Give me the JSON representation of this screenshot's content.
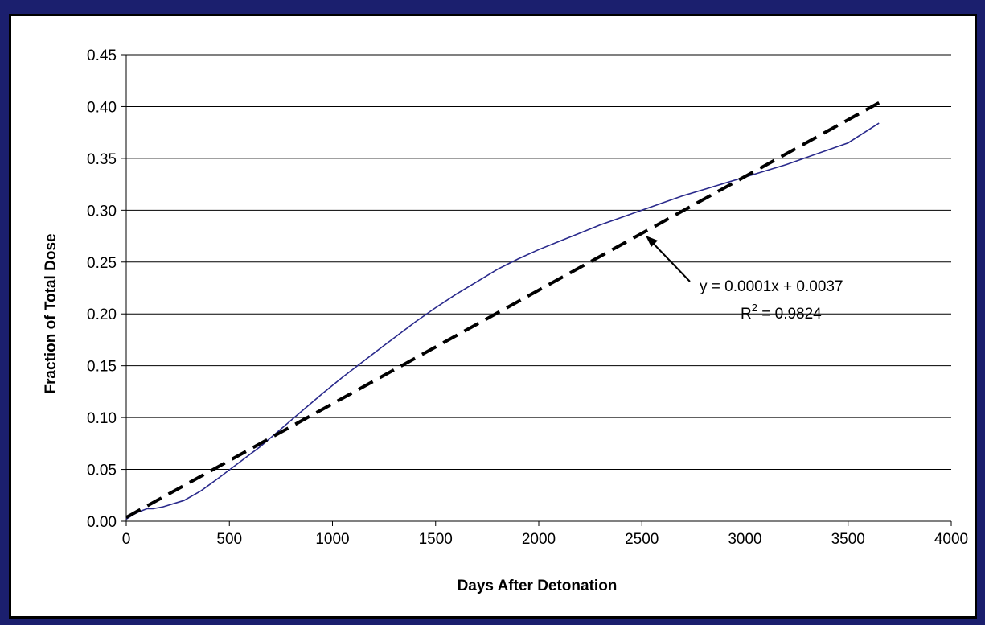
{
  "chart_data": {
    "type": "line",
    "xlabel": "Days After Detonation",
    "ylabel": "Fraction of Total Dose",
    "xlim": [
      0,
      4000
    ],
    "ylim": [
      0,
      0.45
    ],
    "x_ticks": [
      0,
      500,
      1000,
      1500,
      2000,
      2500,
      3000,
      3500,
      4000
    ],
    "x_tick_labels": [
      "0",
      "500",
      "1000",
      "1500",
      "2000",
      "2500",
      "3000",
      "3500",
      "4000"
    ],
    "y_ticks": [
      0,
      0.05,
      0.1,
      0.15,
      0.2,
      0.25,
      0.3,
      0.35,
      0.4,
      0.45
    ],
    "y_tick_labels": [
      "0.00",
      "0.05",
      "0.10",
      "0.15",
      "0.20",
      "0.25",
      "0.30",
      "0.35",
      "0.40",
      "0.45"
    ],
    "grid": "horizontal",
    "series": [
      {
        "style": "solid",
        "color": "#2a2a8c",
        "x": [
          0,
          30,
          60,
          100,
          130,
          180,
          280,
          360,
          450,
          550,
          650,
          750,
          850,
          950,
          1050,
          1200,
          1300,
          1400,
          1500,
          1600,
          1700,
          1800,
          1900,
          2000,
          2100,
          2200,
          2300,
          2400,
          2500,
          2600,
          2700,
          2800,
          2900,
          3000,
          3100,
          3200,
          3300,
          3400,
          3500,
          3650
        ],
        "y": [
          0.002,
          0.006,
          0.009,
          0.012,
          0.012,
          0.014,
          0.02,
          0.029,
          0.042,
          0.057,
          0.072,
          0.089,
          0.106,
          0.123,
          0.139,
          0.162,
          0.177,
          0.192,
          0.206,
          0.219,
          0.231,
          0.243,
          0.253,
          0.262,
          0.27,
          0.278,
          0.286,
          0.293,
          0.3,
          0.307,
          0.314,
          0.32,
          0.326,
          0.332,
          0.338,
          0.344,
          0.351,
          0.358,
          0.365,
          0.384
        ]
      },
      {
        "style": "dashed",
        "color": "#000000",
        "x": [
          0,
          3650
        ],
        "y": [
          0.0037,
          0.4037
        ]
      }
    ],
    "annotations": {
      "equation": "y = 0.0001x + 0.0037",
      "r2_prefix": "R",
      "r2_superscript": "2",
      "r2_value": " = 0.9824"
    }
  }
}
